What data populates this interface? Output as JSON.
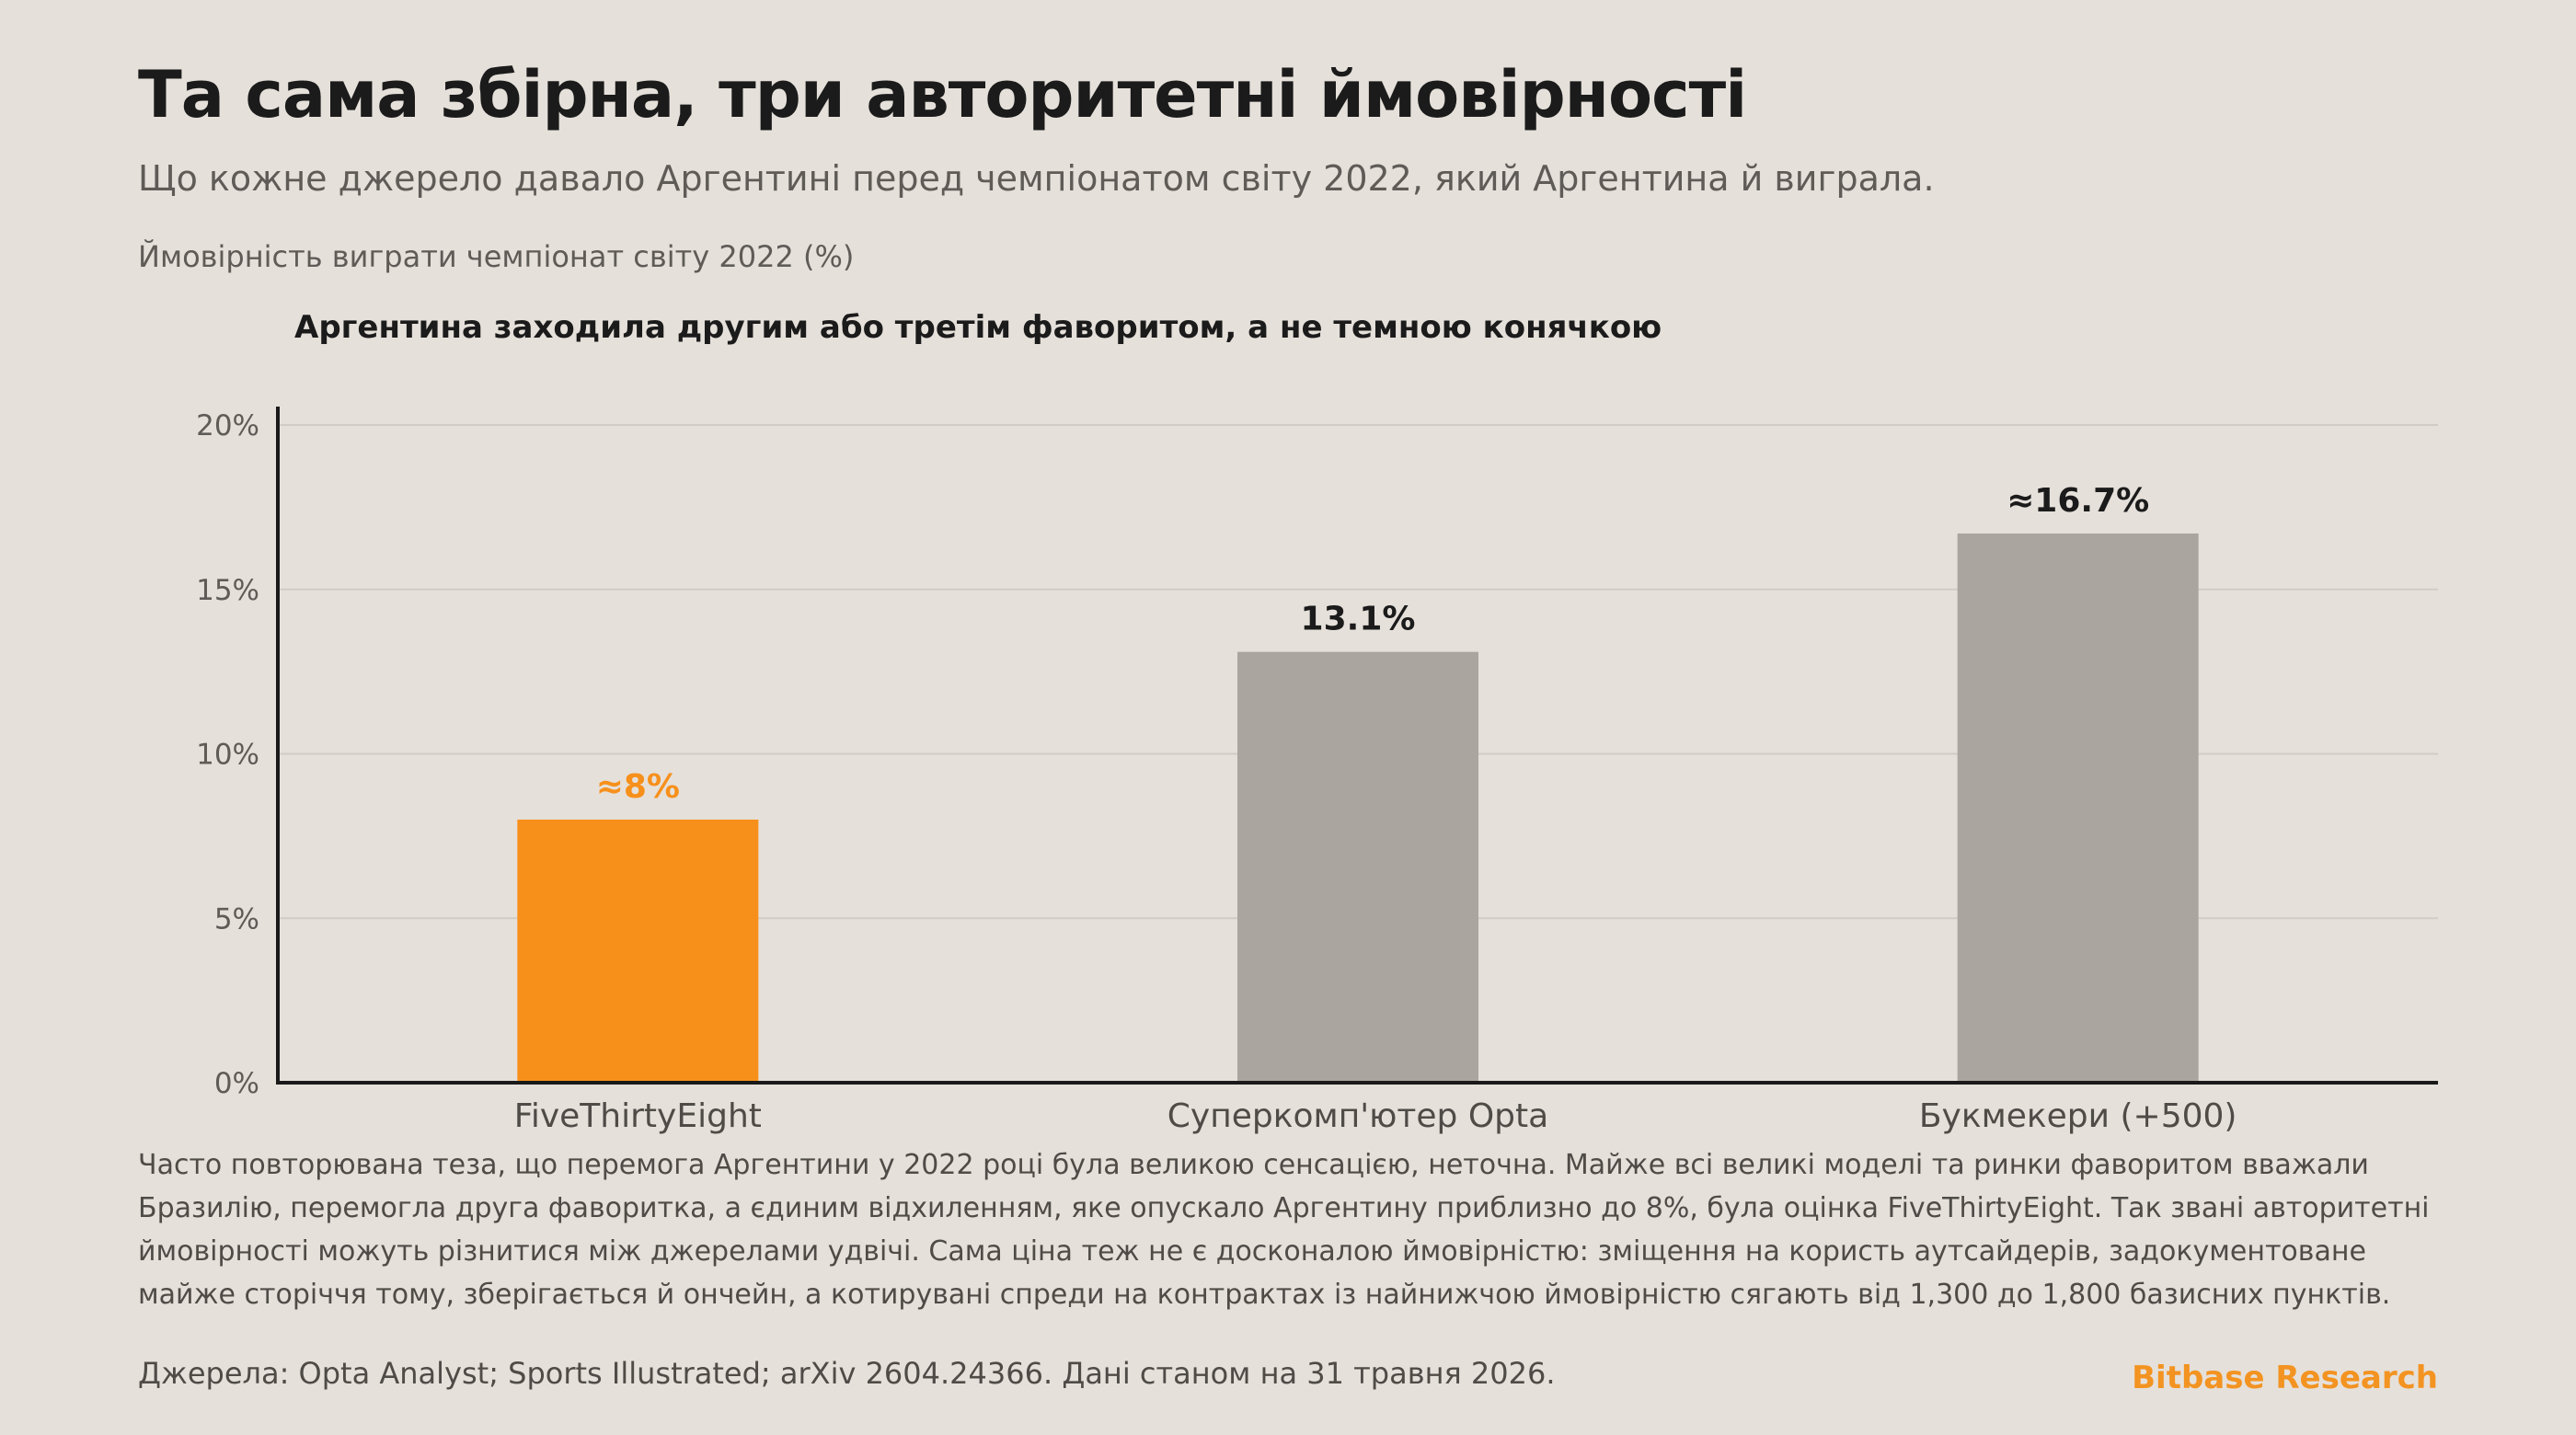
{
  "header": {
    "title": "Та сама збірна, три авторитетні ймовірності",
    "subtitle": "Що кожне джерело давало Аргентині перед чемпіонатом світу 2022, який Аргентина й виграла."
  },
  "colors": {
    "highlight": "#f7901b",
    "neutral": "#aaa59e",
    "axis": "#1a1a1a",
    "grid": "#d2ccc5",
    "background": "#e5e0da"
  },
  "chart_data": {
    "type": "bar",
    "title": "Аргентина заходила другим або третім фаворитом, а не темною конячкою",
    "ylabel": "Ймовірність виграти чемпіонат світу 2022 (%)",
    "xlabel": "",
    "categories": [
      "FiveThirtyEight",
      "Суперкомп'ютер Opta",
      "Букмекери (+500)"
    ],
    "values": [
      8,
      13.1,
      16.7
    ],
    "data_labels": [
      "≈8%",
      "13.1%",
      "≈16.7%"
    ],
    "highlight_index": 0,
    "ylim": [
      0,
      20
    ],
    "yticks": [
      0,
      5,
      10,
      15,
      20
    ],
    "ytick_labels": [
      "0%",
      "5%",
      "10%",
      "15%",
      "20%"
    ],
    "grid": true,
    "legend": "none"
  },
  "body": {
    "text": "Часто повторювана теза, що перемога Аргентини у 2022 році була великою сенсацією, неточна. Майже всі великі моделі та ринки фаворитом вважали Бразилію, перемогла друга фаворитка, а єдиним відхиленням, яке опускало Аргентину приблизно до 8%, була оцінка FiveThirtyEight. Так звані авторитетні ймовірності можуть різнитися між джерелами удвічі. Сама ціна теж не є досконалою ймовірністю: зміщення на користь аутсайдерів, задокументоване майже сторіччя тому, зберігається й ончейн, а котирувані спреди на контрактах із найнижчою ймовірністю сягають від 1,300 до 1,800 базисних пунктів."
  },
  "footer": {
    "sources": "Джерела: Opta Analyst; Sports Illustrated; arXiv 2604.24366. Дані станом на 31 травня 2026.",
    "brand": "Bitbase Research"
  }
}
